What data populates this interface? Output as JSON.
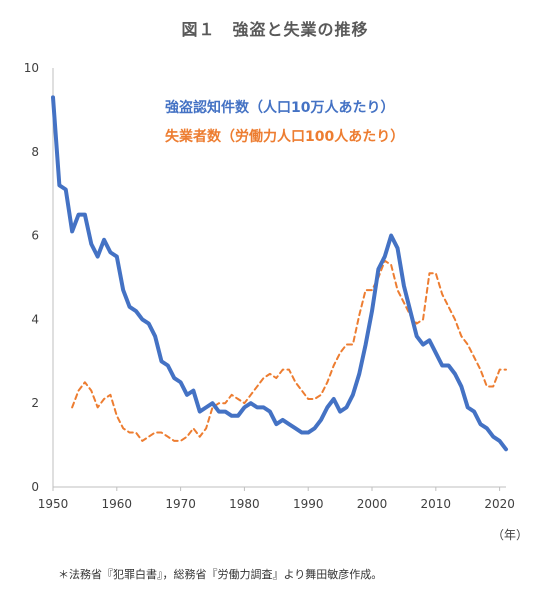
{
  "chart_data": {
    "type": "line",
    "title": "図１　強盗と失業の推移",
    "x_unit": "（年）",
    "xlim": [
      1950,
      2021
    ],
    "ylim": [
      0,
      10
    ],
    "x_ticks": [
      1950,
      1960,
      1970,
      1980,
      1990,
      2000,
      2010,
      2020
    ],
    "y_ticks": [
      0,
      2,
      4,
      6,
      8,
      10
    ],
    "grid": false,
    "legend_placement": "top-right",
    "series": [
      {
        "name": "強盗認知件数（人口10万人あたり）",
        "color": "#4472C4",
        "style": "solid",
        "x": [
          1950,
          1951,
          1952,
          1953,
          1954,
          1955,
          1956,
          1957,
          1958,
          1959,
          1960,
          1961,
          1962,
          1963,
          1964,
          1965,
          1966,
          1967,
          1968,
          1969,
          1970,
          1971,
          1972,
          1973,
          1974,
          1975,
          1976,
          1977,
          1978,
          1979,
          1980,
          1981,
          1982,
          1983,
          1984,
          1985,
          1986,
          1987,
          1988,
          1989,
          1990,
          1991,
          1992,
          1993,
          1994,
          1995,
          1996,
          1997,
          1998,
          1999,
          2000,
          2001,
          2002,
          2003,
          2004,
          2005,
          2006,
          2007,
          2008,
          2009,
          2010,
          2011,
          2012,
          2013,
          2014,
          2015,
          2016,
          2017,
          2018,
          2019,
          2020,
          2021
        ],
        "values": [
          9.3,
          7.2,
          7.1,
          6.1,
          6.5,
          6.5,
          5.8,
          5.5,
          5.9,
          5.6,
          5.5,
          4.7,
          4.3,
          4.2,
          4.0,
          3.9,
          3.6,
          3.0,
          2.9,
          2.6,
          2.5,
          2.2,
          2.3,
          1.8,
          1.9,
          2.0,
          1.8,
          1.8,
          1.7,
          1.7,
          1.9,
          2.0,
          1.9,
          1.9,
          1.8,
          1.5,
          1.6,
          1.5,
          1.4,
          1.3,
          1.3,
          1.4,
          1.6,
          1.9,
          2.1,
          1.8,
          1.9,
          2.2,
          2.7,
          3.4,
          4.2,
          5.2,
          5.5,
          6.0,
          5.7,
          4.8,
          4.2,
          3.6,
          3.4,
          3.5,
          3.2,
          2.9,
          2.9,
          2.7,
          2.4,
          1.9,
          1.8,
          1.5,
          1.4,
          1.2,
          1.1,
          0.9
        ]
      },
      {
        "name": "失業者数（労働力人口100人あたり）",
        "color": "#ED7D31",
        "style": "dashed",
        "x": [
          1953,
          1954,
          1955,
          1956,
          1957,
          1958,
          1959,
          1960,
          1961,
          1962,
          1963,
          1964,
          1965,
          1966,
          1967,
          1968,
          1969,
          1970,
          1971,
          1972,
          1973,
          1974,
          1975,
          1976,
          1977,
          1978,
          1979,
          1980,
          1981,
          1982,
          1983,
          1984,
          1985,
          1986,
          1987,
          1988,
          1989,
          1990,
          1991,
          1992,
          1993,
          1994,
          1995,
          1996,
          1997,
          1998,
          1999,
          2000,
          2001,
          2002,
          2003,
          2004,
          2005,
          2006,
          2007,
          2008,
          2009,
          2010,
          2011,
          2012,
          2013,
          2014,
          2015,
          2016,
          2017,
          2018,
          2019,
          2020,
          2021
        ],
        "values": [
          1.9,
          2.3,
          2.5,
          2.3,
          1.9,
          2.1,
          2.2,
          1.7,
          1.4,
          1.3,
          1.3,
          1.1,
          1.2,
          1.3,
          1.3,
          1.2,
          1.1,
          1.1,
          1.2,
          1.4,
          1.2,
          1.4,
          1.9,
          2.0,
          2.0,
          2.2,
          2.1,
          2.0,
          2.2,
          2.4,
          2.6,
          2.7,
          2.6,
          2.8,
          2.8,
          2.5,
          2.3,
          2.1,
          2.1,
          2.2,
          2.5,
          2.9,
          3.2,
          3.4,
          3.4,
          4.1,
          4.7,
          4.7,
          5.0,
          5.4,
          5.3,
          4.7,
          4.4,
          4.1,
          3.9,
          4.0,
          5.1,
          5.1,
          4.6,
          4.3,
          4.0,
          3.6,
          3.4,
          3.1,
          2.8,
          2.4,
          2.4,
          2.8,
          2.8
        ]
      }
    ]
  },
  "footnote": "＊法務省『犯罪白書』，総務省『労働力調査』より舞田敏彦作成。"
}
